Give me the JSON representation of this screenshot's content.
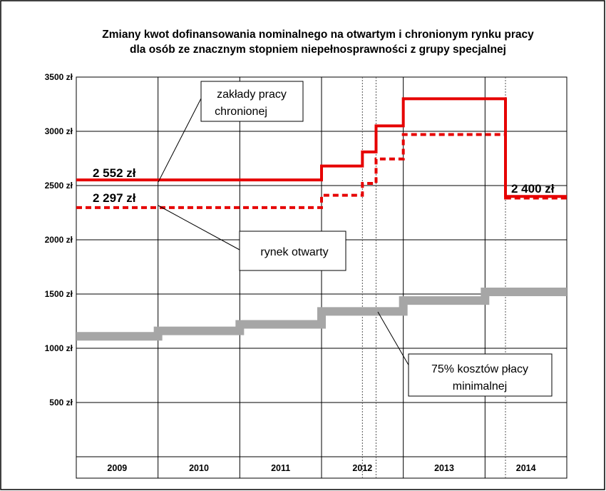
{
  "chart_data": {
    "type": "line",
    "title_lines": [
      "Zmiany kwot dofinansowania nominalnego na otwartym i chronionym rynku pracy",
      "dla osób ze znacznym stopniem niepełnosprawności z grupy specjalnej"
    ],
    "xlabel": "",
    "ylabel": "",
    "ylim": [
      0,
      3500
    ],
    "y_ticks": [
      {
        "value": 500,
        "label": "500 zł"
      },
      {
        "value": 1000,
        "label": "1000 zł"
      },
      {
        "value": 1500,
        "label": "1500 zł"
      },
      {
        "value": 2000,
        "label": "2000 zł"
      },
      {
        "value": 2500,
        "label": "2500 zł"
      },
      {
        "value": 3000,
        "label": "3000 zł"
      },
      {
        "value": 3500,
        "label": "3500 zł"
      }
    ],
    "x_range": [
      2009.0,
      2015.0
    ],
    "x_categories": [
      "2009",
      "2010",
      "2011",
      "2012",
      "2013",
      "2014"
    ],
    "dotted_lines_x": [
      2012.5,
      2012.667,
      2014.25
    ],
    "grid": true,
    "series": [
      {
        "name": "zakłady pracy chronionej",
        "color": "#e60000",
        "style": "solid",
        "steps": [
          {
            "x": 2009.0,
            "y": 2552
          },
          {
            "x": 2012.0,
            "y": 2680
          },
          {
            "x": 2012.5,
            "y": 2810
          },
          {
            "x": 2012.667,
            "y": 3050
          },
          {
            "x": 2013.0,
            "y": 3300
          },
          {
            "x": 2014.25,
            "y": 2400
          }
        ],
        "x_end": 2015.0
      },
      {
        "name": "rynek otwarty",
        "color": "#e60000",
        "style": "dashed",
        "steps": [
          {
            "x": 2009.0,
            "y": 2297
          },
          {
            "x": 2012.0,
            "y": 2410
          },
          {
            "x": 2012.5,
            "y": 2520
          },
          {
            "x": 2012.667,
            "y": 2745
          },
          {
            "x": 2013.0,
            "y": 2970
          },
          {
            "x": 2014.25,
            "y": 2385
          }
        ],
        "x_end": 2015.0
      },
      {
        "name": "75% kosztów płacy minimalnej",
        "color": "#a6a6a6",
        "style": "thick",
        "steps": [
          {
            "x": 2009.0,
            "y": 1110
          },
          {
            "x": 2010.0,
            "y": 1160
          },
          {
            "x": 2011.0,
            "y": 1220
          },
          {
            "x": 2012.0,
            "y": 1340
          },
          {
            "x": 2013.0,
            "y": 1440
          },
          {
            "x": 2014.0,
            "y": 1520
          }
        ],
        "x_end": 2015.0
      }
    ],
    "value_labels": [
      {
        "text": "2 552 zł",
        "value": 2552
      },
      {
        "text": "2 297 zł",
        "value": 2297
      },
      {
        "text": "2 400 zł",
        "value": 2400
      }
    ],
    "annotations": [
      {
        "lines": [
          "zakłady pracy",
          "chronionej"
        ]
      },
      {
        "lines": [
          "rynek otwarty"
        ]
      },
      {
        "lines": [
          "75% kosztów płacy",
          "minimalnej"
        ]
      }
    ]
  }
}
